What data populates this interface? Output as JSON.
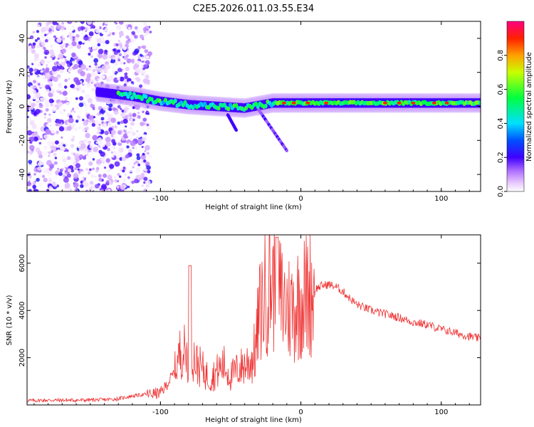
{
  "title": "C2E5.2026.011.03.55.E34",
  "chart_data": [
    {
      "type": "heatmap",
      "title": "C2E5.2026.011.03.55.E34",
      "xlabel": "Height of straight line (km)",
      "ylabel": "Frequency (Hz)",
      "xlim": [
        -195,
        128
      ],
      "ylim": [
        -50,
        50
      ],
      "xticks": [
        -100,
        0,
        100
      ],
      "yticks": [
        -40,
        -20,
        0,
        20,
        40
      ],
      "colorbar": {
        "label": "Normalized spectral amplitude",
        "range": [
          0,
          1
        ],
        "ticks": [
          "0.0",
          "0.2",
          "0.4",
          "0.6",
          "0.8"
        ]
      },
      "ridge": {
        "description_points_x": [
          -140,
          -120,
          -100,
          -80,
          -60,
          -40,
          -20,
          0,
          20,
          60,
          90,
          110,
          128
        ],
        "description_points_y": [
          8,
          6,
          3,
          1,
          0,
          -1,
          2,
          2,
          2,
          2,
          2,
          2,
          2
        ]
      }
    },
    {
      "type": "line",
      "xlabel": "Height of straight line (km)",
      "ylabel": "SNR (10 * v/v)",
      "xlim": [
        -195,
        128
      ],
      "ylim": [
        0,
        7200
      ],
      "xticks": [
        -100,
        0,
        100
      ],
      "yticks": [
        2000,
        4000,
        6000
      ],
      "series": [
        {
          "name": "SNR",
          "color": "#ee3333",
          "x": [
            -195,
            -180,
            -160,
            -140,
            -130,
            -120,
            -110,
            -100,
            -95,
            -90,
            -85,
            -80,
            -78,
            -75,
            -70,
            -65,
            -60,
            -55,
            -50,
            -45,
            -40,
            -35,
            -32,
            -30,
            -28,
            -25,
            -22,
            -20,
            -18,
            -15,
            -12,
            -10,
            -8,
            -5,
            -3,
            0,
            5,
            10,
            15,
            20,
            25,
            30,
            35,
            40,
            50,
            60,
            70,
            80,
            90,
            95,
            100,
            110,
            120,
            128
          ],
          "y": [
            180,
            200,
            200,
            220,
            260,
            380,
            450,
            500,
            900,
            1400,
            2400,
            2000,
            2400,
            1800,
            1500,
            1100,
            1400,
            1700,
            1200,
            1500,
            1700,
            1900,
            2400,
            3700,
            4200,
            4800,
            5300,
            5100,
            5000,
            4600,
            4300,
            4200,
            4100,
            4100,
            4300,
            4500,
            4700,
            4900,
            5050,
            5100,
            5000,
            4800,
            4500,
            4250,
            4000,
            3850,
            3700,
            3500,
            3400,
            3300,
            3200,
            3050,
            2900,
            2800
          ]
        }
      ]
    }
  ]
}
